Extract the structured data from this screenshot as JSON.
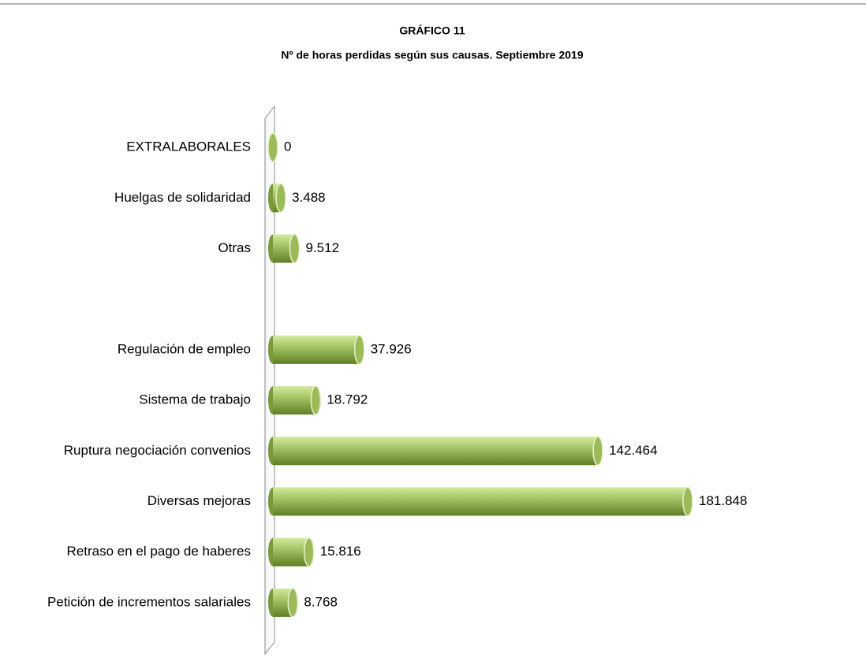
{
  "chart_data": {
    "type": "bar",
    "orientation": "horizontal",
    "title": "GRÁFICO 11",
    "subtitle": "Nº de horas perdidas según sus causas. Septiembre 2019",
    "categories": [
      "EXTRALABORALES",
      "Huelgas de solidaridad",
      "Otras",
      null,
      "Regulación de empleo",
      "Sistema de trabajo",
      "Ruptura negociación convenios",
      "Diversas mejoras",
      "Retraso en el pago de haberes",
      "Petición de incrementos salariales"
    ],
    "values": [
      0,
      3488,
      9512,
      null,
      37926,
      18792,
      142464,
      181848,
      15816,
      8768
    ],
    "value_labels": [
      "0",
      "3.488",
      "9.512",
      null,
      "37.926",
      "18.792",
      "142.464",
      "181.848",
      "15.816",
      "8.768"
    ],
    "color": "#9bbb59"
  }
}
